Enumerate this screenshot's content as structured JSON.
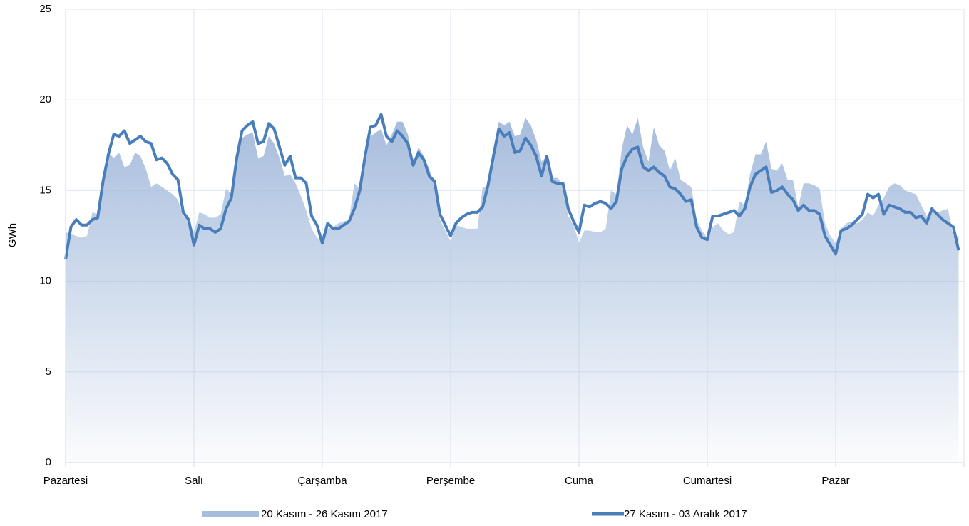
{
  "chart_data": {
    "type": "line",
    "ylabel": "GWh",
    "xlim": [
      0,
      168
    ],
    "xticks": [
      {
        "value": 0,
        "label": "Pazartesi"
      },
      {
        "value": 24,
        "label": "Salı"
      },
      {
        "value": 48,
        "label": "Çarşamba"
      },
      {
        "value": 72,
        "label": "Perşembe"
      },
      {
        "value": 96,
        "label": "Cuma"
      },
      {
        "value": 120,
        "label": "Cumartesi"
      },
      {
        "value": 144,
        "label": "Pazar"
      },
      168
    ],
    "ylim": [
      0,
      25
    ],
    "yticks": [
      0,
      5,
      10,
      15,
      20,
      25
    ],
    "grid": true,
    "x": [
      0,
      1,
      2,
      3,
      4,
      5,
      6,
      7,
      8,
      9,
      10,
      11,
      12,
      13,
      14,
      15,
      16,
      17,
      18,
      19,
      20,
      21,
      22,
      23,
      24,
      25,
      26,
      27,
      28,
      29,
      30,
      31,
      32,
      33,
      34,
      35,
      36,
      37,
      38,
      39,
      40,
      41,
      42,
      43,
      44,
      45,
      46,
      47,
      48,
      49,
      50,
      51,
      52,
      53,
      54,
      55,
      56,
      57,
      58,
      59,
      60,
      61,
      62,
      63,
      64,
      65,
      66,
      67,
      68,
      69,
      70,
      71,
      72,
      73,
      74,
      75,
      76,
      77,
      78,
      79,
      80,
      81,
      82,
      83,
      84,
      85,
      86,
      87,
      88,
      89,
      90,
      91,
      92,
      93,
      94,
      95,
      96,
      97,
      98,
      99,
      100,
      101,
      102,
      103,
      104,
      105,
      106,
      107,
      108,
      109,
      110,
      111,
      112,
      113,
      114,
      115,
      116,
      117,
      118,
      119,
      120,
      121,
      122,
      123,
      124,
      125,
      126,
      127,
      128,
      129,
      130,
      131,
      132,
      133,
      134,
      135,
      136,
      137,
      138,
      139,
      140,
      141,
      142,
      143,
      144,
      145,
      146,
      147,
      148,
      149,
      150,
      151,
      152,
      153,
      154,
      155,
      156,
      157,
      158,
      159,
      160,
      161,
      162,
      163,
      164,
      165,
      166,
      167
    ],
    "series": [
      {
        "name": "20 Kasım - 26 Kasım 2017",
        "kind": "area",
        "color": "#a7bddd",
        "values": [
          12.7,
          12.6,
          12.5,
          12.4,
          12.5,
          13.8,
          13.7,
          15.8,
          17.1,
          16.8,
          17.1,
          16.3,
          16.4,
          17.1,
          16.9,
          16.2,
          15.2,
          15.4,
          15.2,
          15.0,
          14.8,
          14.5,
          13.6,
          13.4,
          12.7,
          13.8,
          13.7,
          13.5,
          13.5,
          13.7,
          15.1,
          14.8,
          17.0,
          17.9,
          18.1,
          18.2,
          16.8,
          16.9,
          18.0,
          17.6,
          16.8,
          15.8,
          15.9,
          15.4,
          14.7,
          13.9,
          12.9,
          12.4,
          12.2,
          12.9,
          13.0,
          13.2,
          13.3,
          13.4,
          15.4,
          15.1,
          17.2,
          18.0,
          18.2,
          18.4,
          17.5,
          18.1,
          18.8,
          18.8,
          18.1,
          16.6,
          17.4,
          16.9,
          16.2,
          15.3,
          13.4,
          12.8,
          12.2,
          13.1,
          13.0,
          12.9,
          12.9,
          12.9,
          15.2,
          15.2,
          17.3,
          18.8,
          18.6,
          18.8,
          18.0,
          18.1,
          19.0,
          18.6,
          17.8,
          16.6,
          16.9,
          15.7,
          15.7,
          15.3,
          13.6,
          13.1,
          12.1,
          12.8,
          12.8,
          12.7,
          12.7,
          12.9,
          15.0,
          14.8,
          17.3,
          18.6,
          18.1,
          19.0,
          17.4,
          16.6,
          18.5,
          17.5,
          17.2,
          16.1,
          16.8,
          15.6,
          15.4,
          15.2,
          13.4,
          12.8,
          12.4,
          13.0,
          13.2,
          12.8,
          12.6,
          12.7,
          14.4,
          14.2,
          15.9,
          17.0,
          17.0,
          17.7,
          16.2,
          16.1,
          16.5,
          15.6,
          15.6,
          14.1,
          15.4,
          15.4,
          15.3,
          15.1,
          13.2,
          12.5,
          12.1,
          12.9,
          13.2,
          13.3,
          13.2,
          13.4,
          13.8,
          13.6,
          14.2,
          14.6,
          15.2,
          15.4,
          15.3,
          15.0,
          14.9,
          14.8,
          14.2,
          13.6,
          13.9,
          13.8,
          13.9,
          14.0,
          12.5,
          12.5
        ]
      },
      {
        "name": "27 Kasım - 03 Aralık 2017",
        "kind": "line",
        "color": "#4a7ebb",
        "values": [
          11.2,
          13.0,
          13.4,
          13.1,
          13.1,
          13.4,
          13.5,
          15.5,
          17.0,
          18.1,
          18.0,
          18.3,
          17.6,
          17.8,
          18.0,
          17.7,
          17.6,
          16.7,
          16.8,
          16.5,
          15.9,
          15.6,
          13.8,
          13.4,
          12.0,
          13.1,
          12.9,
          12.9,
          12.7,
          12.9,
          14.0,
          14.6,
          16.8,
          18.3,
          18.6,
          18.8,
          17.6,
          17.7,
          18.7,
          18.4,
          17.4,
          16.4,
          16.9,
          15.7,
          15.7,
          15.4,
          13.6,
          13.1,
          12.1,
          13.2,
          12.9,
          12.9,
          13.1,
          13.3,
          14.0,
          15.0,
          16.9,
          18.5,
          18.6,
          19.2,
          18.0,
          17.7,
          18.3,
          18.0,
          17.6,
          16.4,
          17.1,
          16.7,
          15.8,
          15.5,
          13.7,
          13.1,
          12.5,
          13.2,
          13.5,
          13.7,
          13.8,
          13.8,
          14.1,
          15.3,
          16.9,
          18.4,
          18.0,
          18.2,
          17.1,
          17.2,
          17.9,
          17.5,
          16.9,
          15.8,
          16.9,
          15.5,
          15.4,
          15.4,
          14.0,
          13.3,
          12.7,
          14.2,
          14.1,
          14.3,
          14.4,
          14.3,
          14.0,
          14.4,
          16.2,
          16.9,
          17.3,
          17.4,
          16.3,
          16.1,
          16.3,
          16.0,
          15.8,
          15.2,
          15.1,
          14.8,
          14.4,
          14.5,
          13.0,
          12.4,
          12.3,
          13.6,
          13.6,
          13.7,
          13.8,
          13.9,
          13.6,
          14.0,
          15.2,
          15.9,
          16.1,
          16.3,
          14.9,
          15.0,
          15.2,
          14.8,
          14.5,
          13.9,
          14.2,
          13.9,
          13.9,
          13.7,
          12.5,
          12.0,
          11.5,
          12.8,
          12.9,
          13.1,
          13.4,
          13.7,
          14.8,
          14.6,
          14.8,
          13.7,
          14.2,
          14.1,
          14.0,
          13.8,
          13.8,
          13.5,
          13.6,
          13.2,
          14.0,
          13.7,
          13.4,
          13.2,
          13.0,
          11.7
        ]
      }
    ]
  }
}
